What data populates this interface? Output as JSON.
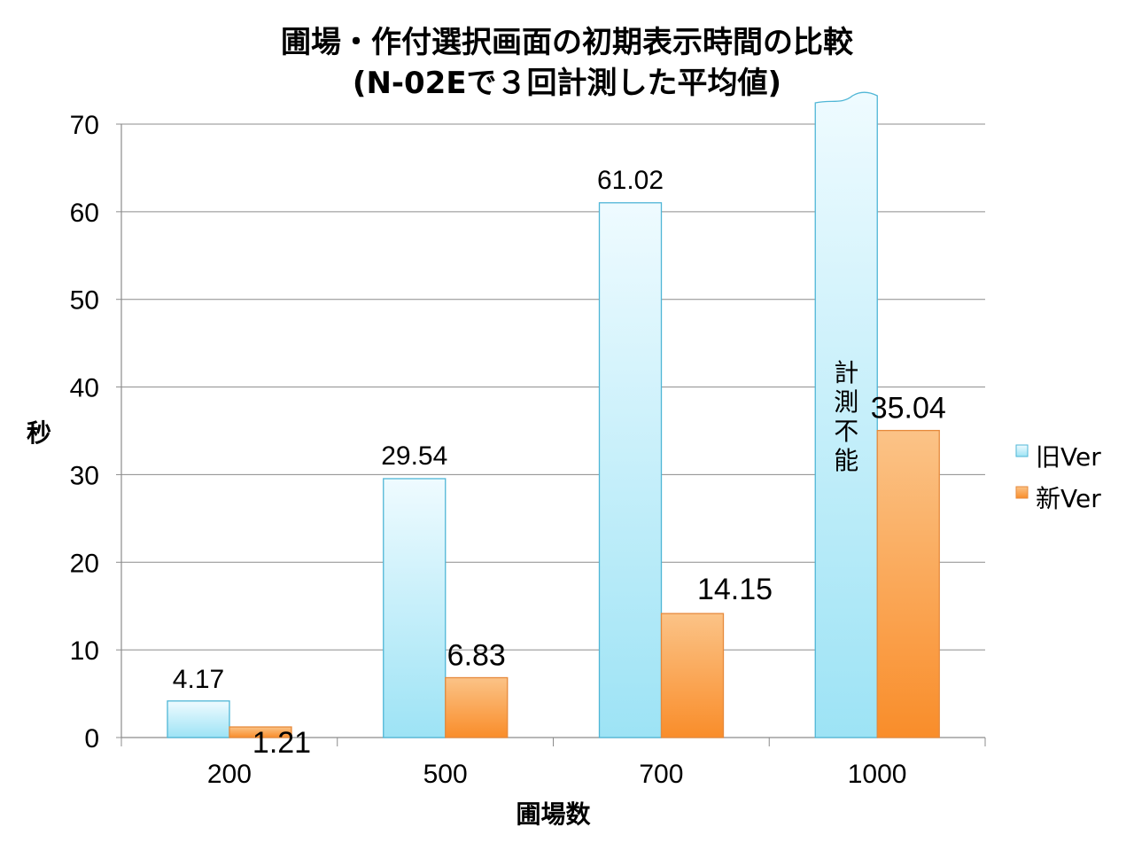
{
  "chart_data": {
    "type": "bar",
    "title": "圃場・作付選択画面の初期表示時間の比較",
    "subtitle": "(N-02Eで３回計測した平均値)",
    "xlabel": "圃場数",
    "ylabel": "秒",
    "ylim": [
      0,
      70
    ],
    "yticks": [
      "0",
      "10",
      "20",
      "30",
      "40",
      "50",
      "60",
      "70"
    ],
    "categories": [
      "200",
      "500",
      "700",
      "1000"
    ],
    "series": [
      {
        "name": "旧Ver",
        "values": [
          4.17,
          29.54,
          61.02,
          null
        ],
        "labels": [
          "4.17",
          "29.54",
          "61.02",
          ""
        ],
        "color": "#a8e6f5"
      },
      {
        "name": "新Ver",
        "values": [
          1.21,
          6.83,
          14.15,
          35.04
        ],
        "labels": [
          "1.21",
          "6.83",
          "14.15",
          "35.04"
        ],
        "color": "#fb9a3e"
      }
    ],
    "annotation": "計測不能",
    "grid": true,
    "legend": "right"
  }
}
